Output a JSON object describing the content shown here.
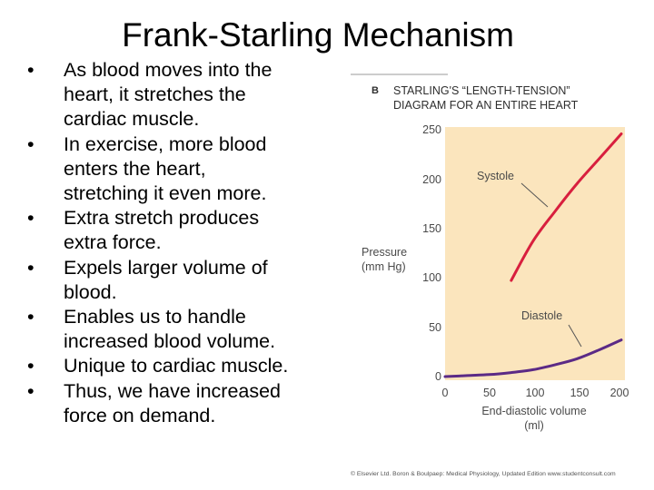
{
  "slide": {
    "title": "Frank-Starling Mechanism",
    "bullet_symbol": "•",
    "bullets": [
      {
        "lines": [
          "As blood moves into the",
          "heart, it stretches the",
          "cardiac muscle."
        ]
      },
      {
        "lines": [
          "In exercise, more blood",
          "enters the heart,",
          "stretching it even more."
        ]
      },
      {
        "lines": [
          "Extra stretch produces",
          "extra force."
        ]
      },
      {
        "lines": [
          "Expels larger volume of",
          "blood."
        ]
      },
      {
        "lines": [
          "Enables us to handle",
          "increased blood volume."
        ]
      },
      {
        "lines": [
          "Unique to cardiac muscle."
        ]
      },
      {
        "lines": [
          "Thus, we have increased",
          "force on demand."
        ]
      }
    ]
  },
  "figure": {
    "panel_letter": "B",
    "title": "STARLING'S “LENGTH-TENSION”\nDIAGRAM FOR AN ENTIRE HEART",
    "credit": "© Elsevier Ltd. Boron & Boulpaep: Medical Physiology, Updated Edition   www.studentconsult.com",
    "plot_background": "#fbe5bd",
    "rule_color": "#9a9a9a"
  },
  "chart_data": {
    "type": "line",
    "title": "STARLING'S “LENGTH-TENSION” DIAGRAM FOR AN ENTIRE HEART",
    "xlabel": "End-diastolic volume\n(ml)",
    "ylabel": "Pressure\n(mm Hg)",
    "xlim": [
      0,
      200
    ],
    "ylim": [
      0,
      250
    ],
    "xticks": [
      "0",
      "50",
      "100",
      "150",
      "200"
    ],
    "yticks": [
      "250",
      "200",
      "150",
      "100",
      "50",
      "0"
    ],
    "grid": false,
    "series": [
      {
        "name": "Systole",
        "color": "#d81f3e",
        "x": [
          75,
          100,
          125,
          150,
          175,
          200
        ],
        "y": [
          97,
          137,
          167,
          195,
          220,
          245
        ]
      },
      {
        "name": "Diastole",
        "color": "#5b2a86",
        "x": [
          0,
          25,
          50,
          75,
          100,
          125,
          150,
          175,
          200
        ],
        "y": [
          0,
          1,
          2,
          4,
          7,
          12,
          18,
          27,
          37
        ]
      }
    ]
  }
}
